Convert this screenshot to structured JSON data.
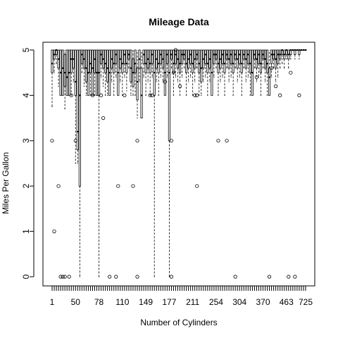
{
  "chart_data": {
    "type": "box",
    "title": "Mileage Data",
    "xlabel": "Number of Cylinders",
    "ylabel": "Miles Per Gallon",
    "ylim": [
      0,
      5
    ],
    "yticks": [
      0,
      1,
      2,
      3,
      4,
      5
    ],
    "x_tick_labels": [
      "1",
      "50",
      "78",
      "110",
      "149",
      "177",
      "211",
      "254",
      "304",
      "370",
      "463",
      "725"
    ],
    "grid": false,
    "legend": "none",
    "box_count": 120,
    "colors": {
      "line": "#000000",
      "background": "#ffffff"
    },
    "boxes": [
      {
        "i": 0,
        "q1": 4.5,
        "med": 4.7,
        "q3": 5.0,
        "wlo": 3.75,
        "whi": 5.0,
        "out": [
          3
        ]
      },
      {
        "i": 1,
        "q1": 4.8,
        "med": 4.9,
        "q3": 5.0,
        "wlo": 4.5,
        "whi": 5.0,
        "out": [
          1
        ]
      },
      {
        "i": 2,
        "q1": 4.9,
        "med": 5.0,
        "q3": 5.0,
        "wlo": 4.7,
        "whi": 5.0,
        "out": []
      },
      {
        "i": 3,
        "q1": 4.6,
        "med": 4.8,
        "q3": 5.0,
        "wlo": 4.2,
        "whi": 5.0,
        "out": [
          2
        ]
      },
      {
        "i": 4,
        "q1": 4.0,
        "med": 4.5,
        "q3": 5.0,
        "wlo": 4.0,
        "whi": 5.0,
        "out": [
          0
        ]
      },
      {
        "i": 5,
        "q1": 4.0,
        "med": 4.6,
        "q3": 5.0,
        "wlo": 4.0,
        "whi": 5.0,
        "out": [
          0
        ]
      },
      {
        "i": 6,
        "q1": 4.2,
        "med": 4.5,
        "q3": 4.9,
        "wlo": 3.7,
        "whi": 5.0,
        "out": [
          0
        ]
      },
      {
        "i": 7,
        "q1": 4.0,
        "med": 4.4,
        "q3": 5.0,
        "wlo": 4.0,
        "whi": 5.0,
        "out": []
      },
      {
        "i": 8,
        "q1": 4.0,
        "med": 4.5,
        "q3": 5.0,
        "wlo": 4.0,
        "whi": 5.0,
        "out": [
          0
        ]
      },
      {
        "i": 9,
        "q1": 4.5,
        "med": 4.8,
        "q3": 5.0,
        "wlo": 4.0,
        "whi": 5.0,
        "out": [
          4
        ]
      },
      {
        "i": 10,
        "q1": 4.6,
        "med": 4.8,
        "q3": 5.0,
        "wlo": 4.3,
        "whi": 5.0,
        "out": []
      },
      {
        "i": 11,
        "q1": 4.0,
        "med": 4.3,
        "q3": 5.0,
        "wlo": 2.5,
        "whi": 5.0,
        "out": [
          3
        ]
      },
      {
        "i": 12,
        "q1": 2.8,
        "med": 3.2,
        "q3": 5.0,
        "wlo": 2.5,
        "whi": 5.0,
        "out": []
      },
      {
        "i": 13,
        "q1": 2.0,
        "med": 4.0,
        "q3": 5.0,
        "wlo": 0.0,
        "whi": 5.0,
        "out": []
      },
      {
        "i": 14,
        "q1": 4.7,
        "med": 4.9,
        "q3": 5.0,
        "wlo": 4.5,
        "whi": 5.0,
        "out": []
      },
      {
        "i": 15,
        "q1": 4.6,
        "med": 4.8,
        "q3": 5.0,
        "wlo": 4.2,
        "whi": 5.0,
        "out": []
      },
      {
        "i": 16,
        "q1": 4.3,
        "med": 4.6,
        "q3": 5.0,
        "wlo": 4.0,
        "whi": 5.0,
        "out": []
      },
      {
        "i": 17,
        "q1": 4.0,
        "med": 4.5,
        "q3": 5.0,
        "wlo": 4.0,
        "whi": 5.0,
        "out": []
      },
      {
        "i": 18,
        "q1": 4.5,
        "med": 4.7,
        "q3": 5.0,
        "wlo": 4.0,
        "whi": 5.0,
        "out": []
      },
      {
        "i": 19,
        "q1": 4.0,
        "med": 4.6,
        "q3": 5.0,
        "wlo": 4.0,
        "whi": 5.0,
        "out": [
          4
        ]
      },
      {
        "i": 20,
        "q1": 4.5,
        "med": 4.8,
        "q3": 5.0,
        "wlo": 4.0,
        "whi": 5.0,
        "out": []
      },
      {
        "i": 21,
        "q1": 4.0,
        "med": 4.5,
        "q3": 5.0,
        "wlo": 4.0,
        "whi": 5.0,
        "out": []
      },
      {
        "i": 22,
        "q1": 4.0,
        "med": 4.5,
        "q3": 5.0,
        "wlo": 0.0,
        "whi": 5.0,
        "out": []
      },
      {
        "i": 23,
        "q1": 4.7,
        "med": 4.9,
        "q3": 5.0,
        "wlo": 4.4,
        "whi": 5.0,
        "out": [
          4
        ]
      },
      {
        "i": 24,
        "q1": 4.6,
        "med": 4.8,
        "q3": 5.0,
        "wlo": 4.2,
        "whi": 5.0,
        "out": [
          3.5
        ]
      },
      {
        "i": 25,
        "q1": 4.5,
        "med": 4.7,
        "q3": 5.0,
        "wlo": 4.0,
        "whi": 5.0,
        "out": []
      },
      {
        "i": 26,
        "q1": 4.3,
        "med": 4.6,
        "q3": 5.0,
        "wlo": 4.0,
        "whi": 5.0,
        "out": []
      },
      {
        "i": 27,
        "q1": 4.0,
        "med": 4.5,
        "q3": 5.0,
        "wlo": 4.0,
        "whi": 5.0,
        "out": [
          0
        ]
      },
      {
        "i": 28,
        "q1": 4.6,
        "med": 4.8,
        "q3": 5.0,
        "wlo": 4.3,
        "whi": 5.0,
        "out": []
      },
      {
        "i": 29,
        "q1": 4.5,
        "med": 4.7,
        "q3": 5.0,
        "wlo": 4.0,
        "whi": 5.0,
        "out": []
      },
      {
        "i": 30,
        "q1": 4.7,
        "med": 4.9,
        "q3": 5.0,
        "wlo": 4.4,
        "whi": 5.0,
        "out": [
          0
        ]
      },
      {
        "i": 31,
        "q1": 4.0,
        "med": 4.5,
        "q3": 5.0,
        "wlo": 4.0,
        "whi": 5.0,
        "out": [
          2
        ]
      },
      {
        "i": 32,
        "q1": 4.6,
        "med": 4.8,
        "q3": 5.0,
        "wlo": 4.3,
        "whi": 5.0,
        "out": []
      },
      {
        "i": 33,
        "q1": 4.5,
        "med": 4.7,
        "q3": 5.0,
        "wlo": 4.0,
        "whi": 5.0,
        "out": []
      },
      {
        "i": 34,
        "q1": 4.7,
        "med": 4.9,
        "q3": 5.0,
        "wlo": 4.4,
        "whi": 5.0,
        "out": [
          4
        ]
      },
      {
        "i": 35,
        "q1": 4.5,
        "med": 4.7,
        "q3": 5.0,
        "wlo": 4.1,
        "whi": 5.0,
        "out": []
      },
      {
        "i": 36,
        "q1": 4.8,
        "med": 4.9,
        "q3": 5.0,
        "wlo": 4.6,
        "whi": 5.0,
        "out": []
      },
      {
        "i": 37,
        "q1": 4.3,
        "med": 4.6,
        "q3": 5.0,
        "wlo": 4.0,
        "whi": 5.0,
        "out": []
      },
      {
        "i": 38,
        "q1": 4.2,
        "med": 4.5,
        "q3": 4.8,
        "wlo": 4.0,
        "whi": 5.0,
        "out": [
          2
        ]
      },
      {
        "i": 39,
        "q1": 4.5,
        "med": 4.7,
        "q3": 5.0,
        "wlo": 4.0,
        "whi": 5.0,
        "out": []
      },
      {
        "i": 40,
        "q1": 3.9,
        "med": 4.3,
        "q3": 4.6,
        "wlo": 3.5,
        "whi": 5.0,
        "out": [
          3,
          0
        ]
      },
      {
        "i": 41,
        "q1": 4.6,
        "med": 4.8,
        "q3": 5.0,
        "wlo": 4.3,
        "whi": 5.0,
        "out": []
      },
      {
        "i": 42,
        "q1": 3.5,
        "med": 4.0,
        "q3": 4.6,
        "wlo": 3.5,
        "whi": 5.0,
        "out": []
      },
      {
        "i": 43,
        "q1": 4.7,
        "med": 4.9,
        "q3": 5.0,
        "wlo": 4.4,
        "whi": 5.0,
        "out": []
      },
      {
        "i": 44,
        "q1": 4.5,
        "med": 4.7,
        "q3": 5.0,
        "wlo": 4.0,
        "whi": 5.0,
        "out": []
      },
      {
        "i": 45,
        "q1": 4.6,
        "med": 4.8,
        "q3": 5.0,
        "wlo": 4.3,
        "whi": 5.0,
        "out": []
      },
      {
        "i": 46,
        "q1": 4.5,
        "med": 4.7,
        "q3": 5.0,
        "wlo": 4.0,
        "whi": 5.0,
        "out": [
          4
        ]
      },
      {
        "i": 47,
        "q1": 4.7,
        "med": 4.9,
        "q3": 5.0,
        "wlo": 4.4,
        "whi": 5.0,
        "out": [
          4
        ]
      },
      {
        "i": 48,
        "q1": 4.0,
        "med": 4.5,
        "q3": 5.0,
        "wlo": 0.0,
        "whi": 5.0,
        "out": []
      },
      {
        "i": 49,
        "q1": 4.6,
        "med": 4.8,
        "q3": 5.0,
        "wlo": 4.3,
        "whi": 5.0,
        "out": []
      },
      {
        "i": 50,
        "q1": 4.5,
        "med": 4.7,
        "q3": 5.0,
        "wlo": 4.0,
        "whi": 5.0,
        "out": []
      },
      {
        "i": 51,
        "q1": 4.7,
        "med": 4.9,
        "q3": 5.0,
        "wlo": 4.4,
        "whi": 5.0,
        "out": []
      },
      {
        "i": 52,
        "q1": 4.6,
        "med": 4.8,
        "q3": 5.0,
        "wlo": 4.3,
        "whi": 5.0,
        "out": []
      },
      {
        "i": 53,
        "q1": 4.0,
        "med": 4.5,
        "q3": 5.0,
        "wlo": 4.0,
        "whi": 5.0,
        "out": [
          4.3
        ]
      },
      {
        "i": 54,
        "q1": 4.7,
        "med": 4.9,
        "q3": 5.0,
        "wlo": 4.4,
        "whi": 5.0,
        "out": []
      },
      {
        "i": 55,
        "q1": 3.0,
        "med": 4.5,
        "q3": 5.0,
        "wlo": 0.0,
        "whi": 5.0,
        "out": []
      },
      {
        "i": 56,
        "q1": 4.8,
        "med": 4.9,
        "q3": 5.0,
        "wlo": 4.6,
        "whi": 5.0,
        "out": [
          3,
          0
        ]
      },
      {
        "i": 57,
        "q1": 4.5,
        "med": 4.7,
        "q3": 5.0,
        "wlo": 4.0,
        "whi": 5.0,
        "out": [
          4.5
        ]
      },
      {
        "i": 58,
        "q1": 4.7,
        "med": 4.9,
        "q3": 5.0,
        "wlo": 4.4,
        "whi": 5.0,
        "out": [
          5
        ]
      },
      {
        "i": 59,
        "q1": 4.6,
        "med": 4.8,
        "q3": 5.0,
        "wlo": 4.3,
        "whi": 5.0,
        "out": []
      },
      {
        "i": 60,
        "q1": 4.5,
        "med": 4.7,
        "q3": 5.0,
        "wlo": 4.0,
        "whi": 5.0,
        "out": [
          4.2
        ]
      },
      {
        "i": 61,
        "q1": 4.7,
        "med": 4.9,
        "q3": 5.0,
        "wlo": 4.4,
        "whi": 5.0,
        "out": []
      },
      {
        "i": 62,
        "q1": 4.8,
        "med": 4.9,
        "q3": 5.0,
        "wlo": 4.6,
        "whi": 5.0,
        "out": []
      },
      {
        "i": 63,
        "q1": 4.5,
        "med": 4.7,
        "q3": 5.0,
        "wlo": 4.0,
        "whi": 5.0,
        "out": []
      },
      {
        "i": 64,
        "q1": 4.6,
        "med": 4.8,
        "q3": 5.0,
        "wlo": 4.3,
        "whi": 5.0,
        "out": []
      },
      {
        "i": 65,
        "q1": 4.7,
        "med": 4.9,
        "q3": 5.0,
        "wlo": 4.4,
        "whi": 5.0,
        "out": []
      },
      {
        "i": 66,
        "q1": 4.5,
        "med": 4.7,
        "q3": 5.0,
        "wlo": 4.0,
        "whi": 5.0,
        "out": []
      },
      {
        "i": 67,
        "q1": 4.6,
        "med": 4.8,
        "q3": 5.0,
        "wlo": 4.3,
        "whi": 5.0,
        "out": [
          4
        ]
      },
      {
        "i": 68,
        "q1": 4.8,
        "med": 4.9,
        "q3": 5.0,
        "wlo": 4.6,
        "whi": 5.0,
        "out": [
          4,
          2
        ]
      },
      {
        "i": 69,
        "q1": 4.5,
        "med": 4.7,
        "q3": 5.0,
        "wlo": 4.0,
        "whi": 5.0,
        "out": []
      },
      {
        "i": 70,
        "q1": 4.3,
        "med": 4.6,
        "q3": 5.0,
        "wlo": 4.0,
        "whi": 5.0,
        "out": []
      },
      {
        "i": 71,
        "q1": 4.6,
        "med": 4.8,
        "q3": 5.0,
        "wlo": 4.3,
        "whi": 5.0,
        "out": []
      },
      {
        "i": 72,
        "q1": 4.7,
        "med": 4.9,
        "q3": 5.0,
        "wlo": 4.4,
        "whi": 5.0,
        "out": []
      },
      {
        "i": 73,
        "q1": 4.5,
        "med": 4.7,
        "q3": 5.0,
        "wlo": 4.0,
        "whi": 5.0,
        "out": []
      },
      {
        "i": 74,
        "q1": 4.6,
        "med": 4.8,
        "q3": 5.0,
        "wlo": 4.3,
        "whi": 5.0,
        "out": []
      },
      {
        "i": 75,
        "q1": 4.0,
        "med": 4.5,
        "q3": 5.0,
        "wlo": 4.0,
        "whi": 5.0,
        "out": []
      },
      {
        "i": 76,
        "q1": 4.7,
        "med": 4.9,
        "q3": 5.0,
        "wlo": 4.4,
        "whi": 5.0,
        "out": []
      },
      {
        "i": 77,
        "q1": 4.8,
        "med": 4.9,
        "q3": 5.0,
        "wlo": 4.6,
        "whi": 5.0,
        "out": []
      },
      {
        "i": 78,
        "q1": 4.5,
        "med": 4.7,
        "q3": 5.0,
        "wlo": 4.0,
        "whi": 5.0,
        "out": [
          3
        ]
      },
      {
        "i": 79,
        "q1": 4.6,
        "med": 4.8,
        "q3": 5.0,
        "wlo": 4.3,
        "whi": 5.0,
        "out": []
      },
      {
        "i": 80,
        "q1": 4.7,
        "med": 4.9,
        "q3": 5.0,
        "wlo": 4.4,
        "whi": 5.0,
        "out": []
      },
      {
        "i": 81,
        "q1": 4.5,
        "med": 4.7,
        "q3": 5.0,
        "wlo": 4.0,
        "whi": 5.0,
        "out": []
      },
      {
        "i": 82,
        "q1": 4.8,
        "med": 4.9,
        "q3": 5.0,
        "wlo": 4.6,
        "whi": 5.0,
        "out": [
          3
        ]
      },
      {
        "i": 83,
        "q1": 4.6,
        "med": 4.8,
        "q3": 5.0,
        "wlo": 4.3,
        "whi": 5.0,
        "out": []
      },
      {
        "i": 84,
        "q1": 4.7,
        "med": 4.9,
        "q3": 5.0,
        "wlo": 4.4,
        "whi": 5.0,
        "out": []
      },
      {
        "i": 85,
        "q1": 4.5,
        "med": 4.7,
        "q3": 5.0,
        "wlo": 4.0,
        "whi": 5.0,
        "out": []
      },
      {
        "i": 86,
        "q1": 4.8,
        "med": 4.9,
        "q3": 5.0,
        "wlo": 4.6,
        "whi": 5.0,
        "out": [
          0
        ]
      },
      {
        "i": 87,
        "q1": 4.6,
        "med": 4.8,
        "q3": 5.0,
        "wlo": 4.3,
        "whi": 5.0,
        "out": []
      },
      {
        "i": 88,
        "q1": 4.7,
        "med": 4.9,
        "q3": 5.0,
        "wlo": 4.4,
        "whi": 5.0,
        "out": []
      },
      {
        "i": 89,
        "q1": 4.5,
        "med": 4.7,
        "q3": 5.0,
        "wlo": 4.0,
        "whi": 5.0,
        "out": []
      },
      {
        "i": 90,
        "q1": 4.8,
        "med": 4.9,
        "q3": 5.0,
        "wlo": 4.6,
        "whi": 5.0,
        "out": []
      },
      {
        "i": 91,
        "q1": 4.6,
        "med": 4.8,
        "q3": 5.0,
        "wlo": 4.3,
        "whi": 5.0,
        "out": []
      },
      {
        "i": 92,
        "q1": 4.7,
        "med": 4.9,
        "q3": 5.0,
        "wlo": 4.4,
        "whi": 5.0,
        "out": []
      },
      {
        "i": 93,
        "q1": 4.5,
        "med": 4.7,
        "q3": 5.0,
        "wlo": 4.0,
        "whi": 5.0,
        "out": []
      },
      {
        "i": 94,
        "q1": 4.0,
        "med": 4.5,
        "q3": 5.0,
        "wlo": 4.0,
        "whi": 5.0,
        "out": []
      },
      {
        "i": 95,
        "q1": 4.8,
        "med": 4.9,
        "q3": 5.0,
        "wlo": 4.6,
        "whi": 5.0,
        "out": []
      },
      {
        "i": 96,
        "q1": 4.6,
        "med": 4.8,
        "q3": 5.0,
        "wlo": 4.3,
        "whi": 5.0,
        "out": [
          4.4
        ]
      },
      {
        "i": 97,
        "q1": 4.7,
        "med": 4.9,
        "q3": 5.0,
        "wlo": 4.4,
        "whi": 5.0,
        "out": []
      },
      {
        "i": 98,
        "q1": 4.5,
        "med": 4.7,
        "q3": 5.0,
        "wlo": 4.0,
        "whi": 5.0,
        "out": []
      },
      {
        "i": 99,
        "q1": 4.8,
        "med": 4.9,
        "q3": 5.0,
        "wlo": 4.6,
        "whi": 5.0,
        "out": []
      },
      {
        "i": 100,
        "q1": 4.6,
        "med": 4.8,
        "q3": 5.0,
        "wlo": 4.3,
        "whi": 5.0,
        "out": []
      },
      {
        "i": 101,
        "q1": 4.5,
        "med": 4.7,
        "q3": 5.0,
        "wlo": 4.0,
        "whi": 5.0,
        "out": []
      },
      {
        "i": 102,
        "q1": 4.0,
        "med": 4.4,
        "q3": 4.6,
        "wlo": 4.0,
        "whi": 5.0,
        "out": [
          0
        ]
      },
      {
        "i": 103,
        "q1": 4.7,
        "med": 4.9,
        "q3": 5.0,
        "wlo": 4.4,
        "whi": 5.0,
        "out": [
          4.6
        ]
      },
      {
        "i": 104,
        "q1": 4.8,
        "med": 4.9,
        "q3": 5.0,
        "wlo": 4.6,
        "whi": 5.0,
        "out": []
      },
      {
        "i": 105,
        "q1": 4.6,
        "med": 4.8,
        "q3": 5.0,
        "wlo": 4.3,
        "whi": 5.0,
        "out": [
          4.2
        ]
      },
      {
        "i": 106,
        "q1": 4.7,
        "med": 4.9,
        "q3": 5.0,
        "wlo": 4.4,
        "whi": 5.0,
        "out": []
      },
      {
        "i": 107,
        "q1": 4.8,
        "med": 4.9,
        "q3": 5.0,
        "wlo": 4.6,
        "whi": 5.0,
        "out": [
          4
        ]
      },
      {
        "i": 108,
        "q1": 4.9,
        "med": 5.0,
        "q3": 5.0,
        "wlo": 4.7,
        "whi": 5.0,
        "out": []
      },
      {
        "i": 109,
        "q1": 4.8,
        "med": 4.9,
        "q3": 5.0,
        "wlo": 4.6,
        "whi": 5.0,
        "out": []
      },
      {
        "i": 110,
        "q1": 4.9,
        "med": 5.0,
        "q3": 5.0,
        "wlo": 4.8,
        "whi": 5.0,
        "out": []
      },
      {
        "i": 111,
        "q1": 4.8,
        "med": 4.9,
        "q3": 5.0,
        "wlo": 4.6,
        "whi": 5.0,
        "out": [
          0
        ]
      },
      {
        "i": 112,
        "q1": 4.9,
        "med": 5.0,
        "q3": 5.0,
        "wlo": 4.8,
        "whi": 5.0,
        "out": [
          4.5
        ]
      },
      {
        "i": 113,
        "q1": 5.0,
        "med": 5.0,
        "q3": 5.0,
        "wlo": 5.0,
        "whi": 5.0,
        "out": []
      },
      {
        "i": 114,
        "q1": 4.9,
        "med": 5.0,
        "q3": 5.0,
        "wlo": 4.8,
        "whi": 5.0,
        "out": [
          0
        ]
      },
      {
        "i": 115,
        "q1": 5.0,
        "med": 5.0,
        "q3": 5.0,
        "wlo": 5.0,
        "whi": 5.0,
        "out": []
      },
      {
        "i": 116,
        "q1": 4.9,
        "med": 5.0,
        "q3": 5.0,
        "wlo": 4.8,
        "whi": 5.0,
        "out": [
          4
        ]
      },
      {
        "i": 117,
        "q1": 5.0,
        "med": 5.0,
        "q3": 5.0,
        "wlo": 5.0,
        "whi": 5.0,
        "out": []
      },
      {
        "i": 118,
        "q1": 5.0,
        "med": 5.0,
        "q3": 5.0,
        "wlo": 5.0,
        "whi": 5.0,
        "out": []
      },
      {
        "i": 119,
        "q1": 5.0,
        "med": 5.0,
        "q3": 5.0,
        "wlo": 5.0,
        "whi": 5.0,
        "out": []
      }
    ]
  }
}
